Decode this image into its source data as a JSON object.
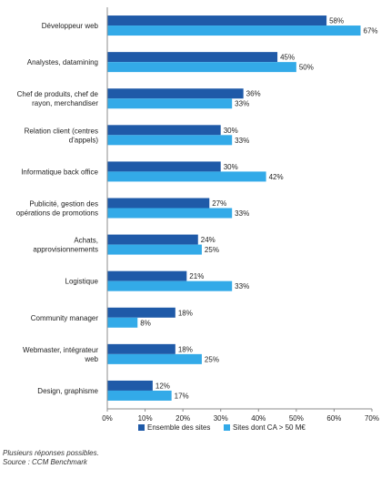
{
  "chart_data": {
    "type": "bar",
    "orientation": "horizontal",
    "categories": [
      [
        "Développeur web"
      ],
      [
        "Analystes, datamining"
      ],
      [
        "Chef de produits, chef de",
        "rayon, merchandiser"
      ],
      [
        "Relation client (centres",
        "d'appels)"
      ],
      [
        "Informatique back office"
      ],
      [
        "Publicité, gestion des",
        "opérations de promotions"
      ],
      [
        "Achats,",
        "approvisionnements"
      ],
      [
        "Logistique"
      ],
      [
        "Community manager"
      ],
      [
        "Webmaster, intégrateur",
        "web"
      ],
      [
        "Design, graphisme"
      ]
    ],
    "series": [
      {
        "name": "Ensemble des sites",
        "color": "#1f5aa8",
        "values": [
          58,
          45,
          36,
          30,
          30,
          27,
          24,
          21,
          18,
          18,
          12
        ]
      },
      {
        "name": "Sites dont CA > 50 M€",
        "color": "#33aae8",
        "values": [
          67,
          50,
          33,
          33,
          42,
          33,
          25,
          33,
          8,
          25,
          17
        ]
      }
    ],
    "value_suffix": "%",
    "xlim": [
      0,
      70
    ],
    "x_ticks": [
      "0%",
      "10%",
      "20%",
      "30%",
      "40%",
      "50%",
      "60%",
      "70%"
    ],
    "x_tick_values": [
      0,
      10,
      20,
      30,
      40,
      50,
      60,
      70
    ],
    "legend_position": "bottom",
    "grid": false
  },
  "notes": {
    "line1": "Plusieurs réponses possibles.",
    "line2": "Source : CCM Benchmark"
  }
}
